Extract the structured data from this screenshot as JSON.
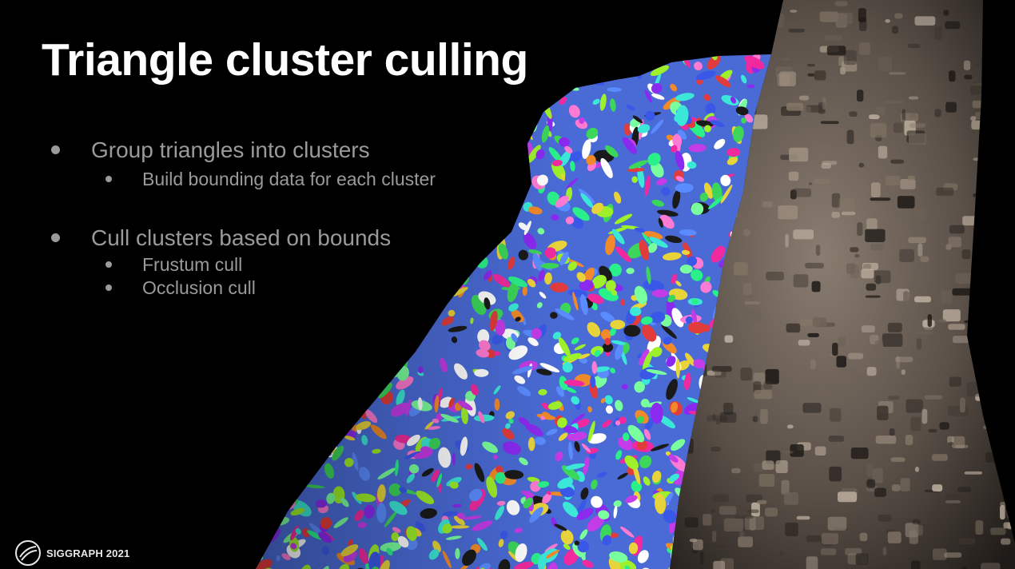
{
  "slide": {
    "title": "Triangle cluster culling",
    "bullets": [
      {
        "text": "Group triangles into clusters",
        "sub": [
          "Build bounding data for each cluster"
        ]
      },
      {
        "text": "Cull clusters based on bounds",
        "sub": [
          "Frustum cull",
          "Occlusion cull"
        ]
      }
    ],
    "footer": {
      "logo_icon": "siggraph-logo-icon",
      "text": "SIGGRAPH 2021"
    }
  },
  "colors": {
    "background": "#000000",
    "title": "#ffffff",
    "bullet_text": "#9a9a9a",
    "statue_stone": "#6e6258"
  }
}
